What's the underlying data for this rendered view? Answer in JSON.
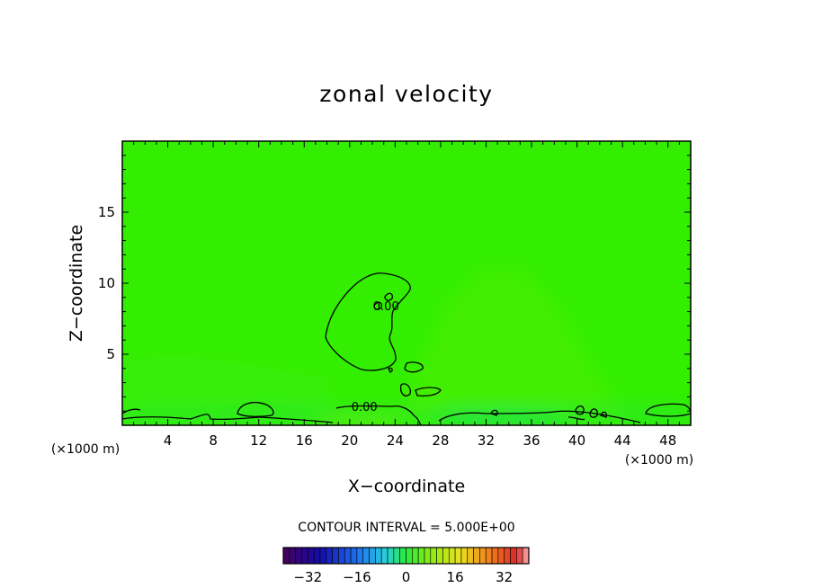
{
  "chart_data": {
    "type": "heatmap",
    "title": "zonal velocity",
    "xlabel": "X−coordinate",
    "ylabel": "Z−coordinate",
    "x_unit_left": "(×1000 m)",
    "x_unit_right": "(×1000 m)",
    "xlim": [
      0,
      50
    ],
    "ylim": [
      0,
      20
    ],
    "x_ticks": [
      4,
      8,
      12,
      16,
      20,
      24,
      28,
      32,
      36,
      40,
      44,
      48
    ],
    "x_tick_labels": [
      "4",
      "8",
      "12",
      "16",
      "20",
      "24",
      "28",
      "32",
      "36",
      "40",
      "44",
      "48"
    ],
    "y_ticks": [
      5,
      10,
      15
    ],
    "y_tick_labels": [
      "5",
      "10",
      "15"
    ],
    "contour_labels": [
      {
        "text": "0.00",
        "x": 23.2,
        "z": 8.1
      },
      {
        "text": "0.00",
        "x": 21.3,
        "z": 1.0
      }
    ],
    "contour_interval_text": "CONTOUR INTERVAL = 5.000E+00",
    "colorbar": {
      "min": -40,
      "max": 40,
      "step": 2,
      "ticks": [
        -32,
        -16,
        0,
        16,
        32
      ],
      "tick_labels": [
        "−32",
        "−16",
        "0",
        "16",
        "32"
      ]
    },
    "field_base_color": "#33ee00",
    "field_base_value": 0
  }
}
